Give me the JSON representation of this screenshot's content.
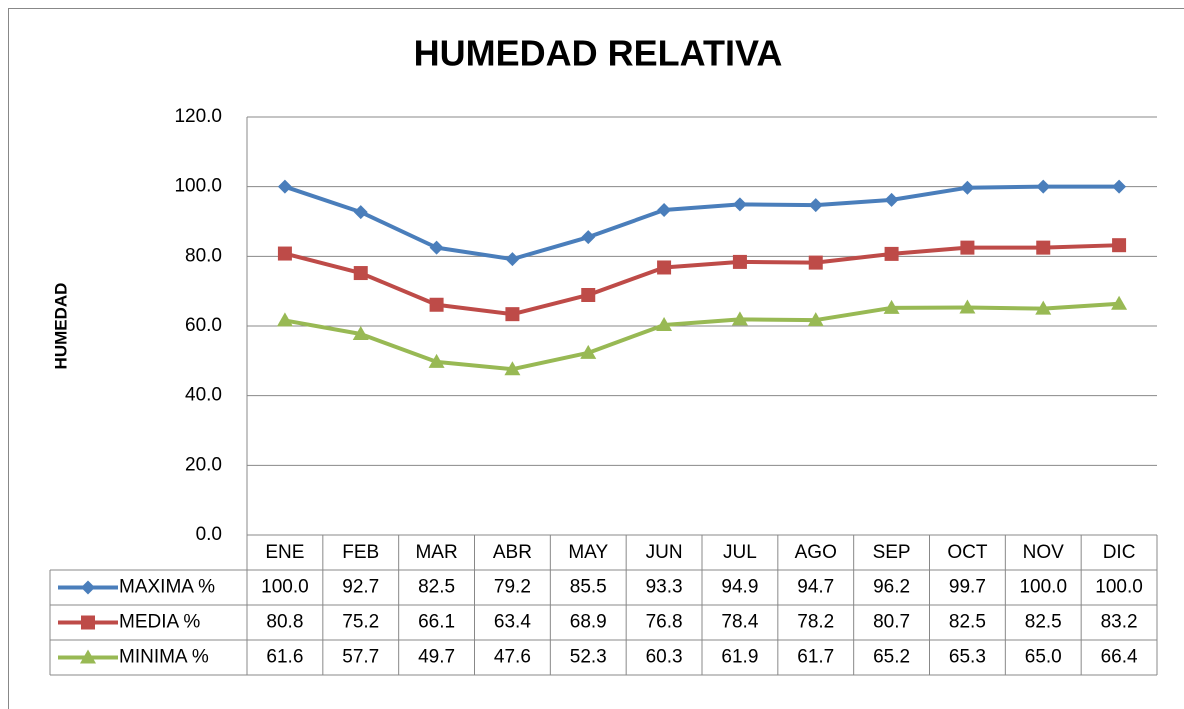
{
  "chart_data": {
    "type": "line",
    "title": "HUMEDAD RELATIVA",
    "y_label": "HUMEDAD",
    "categories": [
      "ENE",
      "FEB",
      "MAR",
      "ABR",
      "MAY",
      "JUN",
      "JUL",
      "AGO",
      "SEP",
      "OCT",
      "NOV",
      "DIC"
    ],
    "series": [
      {
        "name": "MAXIMA %",
        "color": "#4a7ebb",
        "marker": "diamond",
        "values": [
          100.0,
          92.7,
          82.5,
          79.2,
          85.5,
          93.3,
          94.9,
          94.7,
          96.2,
          99.7,
          100.0,
          100.0
        ],
        "value_labels": [
          "100.0",
          "92.7",
          "82.5",
          "79.2",
          "85.5",
          "93.3",
          "94.9",
          "94.7",
          "96.2",
          "99.7",
          "100.0",
          "100.0"
        ]
      },
      {
        "name": "MEDIA %",
        "color": "#be4b48",
        "marker": "square",
        "values": [
          80.8,
          75.2,
          66.1,
          63.4,
          68.9,
          76.8,
          78.4,
          78.2,
          80.7,
          82.5,
          82.5,
          83.2
        ],
        "value_labels": [
          "80.8",
          "75.2",
          "66.1",
          "63.4",
          "68.9",
          "76.8",
          "78.4",
          "78.2",
          "80.7",
          "82.5",
          "82.5",
          "83.2"
        ]
      },
      {
        "name": "MINIMA %",
        "color": "#98b954",
        "marker": "triangle",
        "values": [
          61.6,
          57.7,
          49.7,
          47.6,
          52.3,
          60.3,
          61.9,
          61.7,
          65.2,
          65.3,
          65.0,
          66.4
        ],
        "value_labels": [
          "61.6",
          "57.7",
          "49.7",
          "47.6",
          "52.3",
          "60.3",
          "61.9",
          "61.7",
          "65.2",
          "65.3",
          "65.0",
          "66.4"
        ]
      }
    ],
    "ylim": [
      0,
      120
    ],
    "yticks": [
      {
        "value": 0,
        "label": "0.0"
      },
      {
        "value": 20,
        "label": "20.0"
      },
      {
        "value": 40,
        "label": "40.0"
      },
      {
        "value": 60,
        "label": "60.0"
      },
      {
        "value": 80,
        "label": "80.0"
      },
      {
        "value": 100,
        "label": "100.0"
      },
      {
        "value": 120,
        "label": "120.0"
      }
    ],
    "grid": true,
    "legend": "table"
  }
}
